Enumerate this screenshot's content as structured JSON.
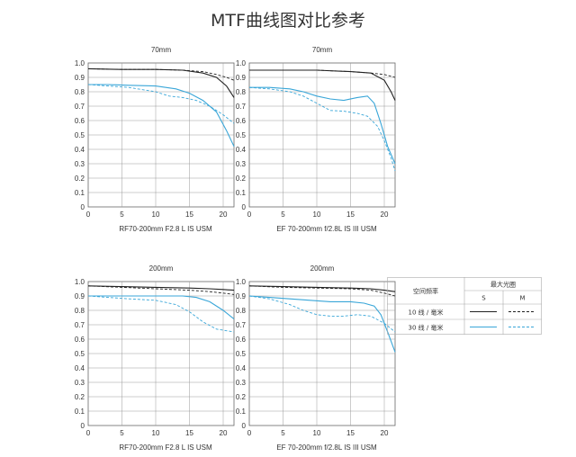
{
  "page": {
    "title": "MTF曲线图对比参考"
  },
  "axes": {
    "x_ticks": [
      0,
      5,
      10,
      15,
      20
    ],
    "y_ticks": [
      "0",
      "0.1",
      "0.2",
      "0.3",
      "0.4",
      "0.5",
      "0.6",
      "0.7",
      "0.8",
      "0.9",
      "1.0"
    ],
    "xlim": [
      0,
      21.6
    ],
    "ylim": [
      0,
      1.0
    ]
  },
  "colors": {
    "lp10": "#222222",
    "lp30": "#39a6d8",
    "grid": "#999999"
  },
  "chart_data": [
    {
      "type": "line",
      "title": "70mm",
      "caption": "RF70-200mm F2.8 L IS USM",
      "grid": true,
      "xlim": [
        0,
        21.6
      ],
      "ylim": [
        0,
        1.0
      ],
      "series": [
        {
          "name": "10 线 / 毫米",
          "variant": "S",
          "x": [
            0,
            5,
            10,
            14,
            17,
            19,
            20.5,
            21.6
          ],
          "y": [
            0.96,
            0.955,
            0.955,
            0.95,
            0.93,
            0.9,
            0.84,
            0.76
          ]
        },
        {
          "name": "10 线 / 毫米",
          "variant": "M",
          "x": [
            0,
            5,
            10,
            14,
            17,
            19,
            20.5,
            21.6
          ],
          "y": [
            0.96,
            0.955,
            0.955,
            0.95,
            0.94,
            0.92,
            0.9,
            0.88
          ]
        },
        {
          "name": "30 线 / 毫米",
          "variant": "S",
          "x": [
            0,
            3,
            6,
            10,
            13,
            15,
            17,
            19,
            20.5,
            21.6
          ],
          "y": [
            0.85,
            0.85,
            0.845,
            0.84,
            0.82,
            0.79,
            0.74,
            0.66,
            0.53,
            0.42
          ]
        },
        {
          "name": "30 线 / 毫米",
          "variant": "M",
          "x": [
            0,
            3,
            6,
            10,
            12,
            14,
            16,
            18,
            20,
            21.6
          ],
          "y": [
            0.85,
            0.84,
            0.83,
            0.8,
            0.77,
            0.76,
            0.74,
            0.7,
            0.64,
            0.58
          ]
        }
      ]
    },
    {
      "type": "line",
      "title": "70mm",
      "caption": "EF 70-200mm f/2.8L IS III USM",
      "grid": true,
      "xlim": [
        0,
        21.6
      ],
      "ylim": [
        0,
        1.0
      ],
      "series": [
        {
          "name": "10 线 / 毫米",
          "variant": "S",
          "x": [
            0,
            5,
            10,
            15,
            18,
            20,
            21,
            21.6
          ],
          "y": [
            0.95,
            0.95,
            0.95,
            0.94,
            0.93,
            0.88,
            0.8,
            0.74
          ]
        },
        {
          "name": "10 线 / 毫米",
          "variant": "M",
          "x": [
            0,
            5,
            10,
            15,
            18,
            20,
            21.6
          ],
          "y": [
            0.95,
            0.95,
            0.95,
            0.94,
            0.93,
            0.92,
            0.9
          ]
        },
        {
          "name": "30 线 / 毫米",
          "variant": "S",
          "x": [
            0,
            3,
            6,
            8,
            10,
            12,
            14,
            16,
            17.5,
            18.5,
            19.5,
            20.5,
            21.6
          ],
          "y": [
            0.83,
            0.83,
            0.82,
            0.8,
            0.77,
            0.75,
            0.74,
            0.76,
            0.77,
            0.72,
            0.58,
            0.42,
            0.3
          ]
        },
        {
          "name": "30 线 / 毫米",
          "variant": "M",
          "x": [
            0,
            3,
            6,
            8,
            10,
            12,
            14,
            16,
            17.5,
            19,
            20,
            21,
            21.6
          ],
          "y": [
            0.83,
            0.82,
            0.8,
            0.77,
            0.72,
            0.67,
            0.665,
            0.65,
            0.63,
            0.56,
            0.46,
            0.34,
            0.25
          ]
        }
      ]
    },
    {
      "type": "line",
      "title": "200mm",
      "caption": "RF70-200mm F2.8 L IS USM",
      "grid": true,
      "xlim": [
        0,
        21.6
      ],
      "ylim": [
        0,
        1.0
      ],
      "series": [
        {
          "name": "10 线 / 毫米",
          "variant": "S",
          "x": [
            0,
            5,
            10,
            15,
            18,
            20,
            21.6
          ],
          "y": [
            0.97,
            0.965,
            0.96,
            0.955,
            0.95,
            0.945,
            0.94
          ]
        },
        {
          "name": "10 线 / 毫米",
          "variant": "M",
          "x": [
            0,
            5,
            10,
            15,
            18,
            20,
            21.6
          ],
          "y": [
            0.97,
            0.96,
            0.95,
            0.94,
            0.93,
            0.92,
            0.91
          ]
        },
        {
          "name": "30 线 / 毫米",
          "variant": "S",
          "x": [
            0,
            5,
            10,
            14,
            16,
            18,
            20,
            21.6
          ],
          "y": [
            0.9,
            0.9,
            0.9,
            0.9,
            0.89,
            0.86,
            0.8,
            0.74
          ]
        },
        {
          "name": "30 线 / 毫米",
          "variant": "M",
          "x": [
            0,
            3,
            6,
            10,
            13,
            15,
            17,
            19,
            21.6
          ],
          "y": [
            0.9,
            0.89,
            0.88,
            0.87,
            0.84,
            0.79,
            0.72,
            0.67,
            0.65
          ]
        }
      ]
    },
    {
      "type": "line",
      "title": "200mm",
      "caption": "EF 70-200mm f/2.8L IS III USM",
      "grid": true,
      "xlim": [
        0,
        21.6
      ],
      "ylim": [
        0,
        1.0
      ],
      "series": [
        {
          "name": "10 线 / 毫米",
          "variant": "S",
          "x": [
            0,
            5,
            10,
            15,
            18,
            20,
            21.6
          ],
          "y": [
            0.97,
            0.965,
            0.96,
            0.955,
            0.95,
            0.94,
            0.93
          ]
        },
        {
          "name": "10 线 / 毫米",
          "variant": "M",
          "x": [
            0,
            5,
            10,
            15,
            18,
            20,
            21.6
          ],
          "y": [
            0.97,
            0.96,
            0.955,
            0.95,
            0.94,
            0.92,
            0.9
          ]
        },
        {
          "name": "30 线 / 毫米",
          "variant": "S",
          "x": [
            0,
            3,
            6,
            9,
            12,
            15,
            17,
            18.5,
            19.5,
            20.5,
            21.6
          ],
          "y": [
            0.9,
            0.89,
            0.88,
            0.87,
            0.86,
            0.86,
            0.85,
            0.83,
            0.77,
            0.65,
            0.51
          ]
        },
        {
          "name": "30 线 / 毫米",
          "variant": "M",
          "x": [
            0,
            3,
            6,
            8,
            10,
            12,
            14,
            16,
            18,
            20,
            21.6
          ],
          "y": [
            0.9,
            0.88,
            0.84,
            0.8,
            0.77,
            0.76,
            0.76,
            0.77,
            0.76,
            0.71,
            0.65
          ]
        }
      ]
    }
  ],
  "legend": {
    "header_freq": "空间频率",
    "header_aperture": "最大光圈",
    "col_s": "S",
    "col_m": "M",
    "row_10": "10 线 / 毫米",
    "row_30": "30 线 / 毫米"
  }
}
